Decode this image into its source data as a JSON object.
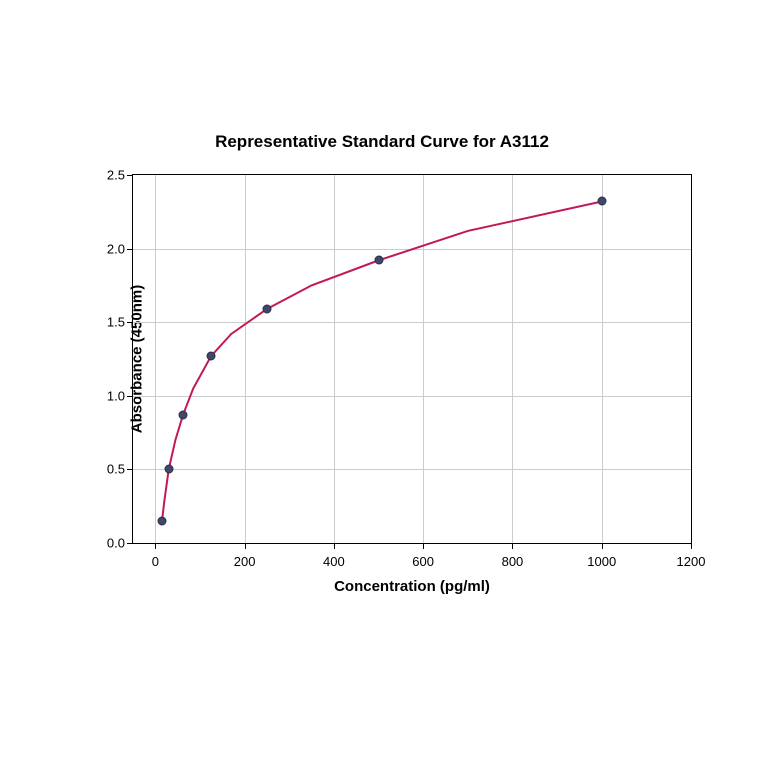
{
  "chart": {
    "type": "scatter-line",
    "title": "Representative Standard Curve for A3112",
    "title_fontsize": 17,
    "title_weight": "bold",
    "xlabel": "Concentration (pg/ml)",
    "ylabel": "Absorbance (450nm)",
    "label_fontsize": 15,
    "label_weight": "bold",
    "tick_fontsize": 13,
    "background_color": "#ffffff",
    "plot_border_color": "#000000",
    "grid_color": "#cccccc",
    "grid": true,
    "xlim": [
      -50,
      1200
    ],
    "ylim": [
      0,
      2.5
    ],
    "xticks": [
      0,
      200,
      400,
      600,
      800,
      1000,
      1200
    ],
    "yticks": [
      0.0,
      0.5,
      1.0,
      1.5,
      2.0,
      2.5
    ],
    "xtick_labels": [
      "0",
      "200",
      "400",
      "600",
      "800",
      "1000",
      "1200"
    ],
    "ytick_labels": [
      "0.0",
      "0.5",
      "1.0",
      "1.5",
      "2.0",
      "2.5"
    ],
    "data_points": {
      "x": [
        15,
        30,
        62,
        125,
        250,
        500,
        1000
      ],
      "y": [
        0.15,
        0.5,
        0.87,
        1.27,
        1.59,
        1.92,
        2.32
      ]
    },
    "marker_color": "#40476b",
    "marker_border_color": "#2a2f47",
    "marker_size": 9,
    "line_color": "#c2185b",
    "line_width": 2,
    "curve_points": {
      "x": [
        15,
        20,
        30,
        45,
        62,
        85,
        125,
        170,
        250,
        350,
        500,
        700,
        1000
      ],
      "y": [
        0.15,
        0.28,
        0.5,
        0.7,
        0.87,
        1.05,
        1.27,
        1.42,
        1.59,
        1.75,
        1.92,
        2.12,
        2.32
      ]
    }
  }
}
